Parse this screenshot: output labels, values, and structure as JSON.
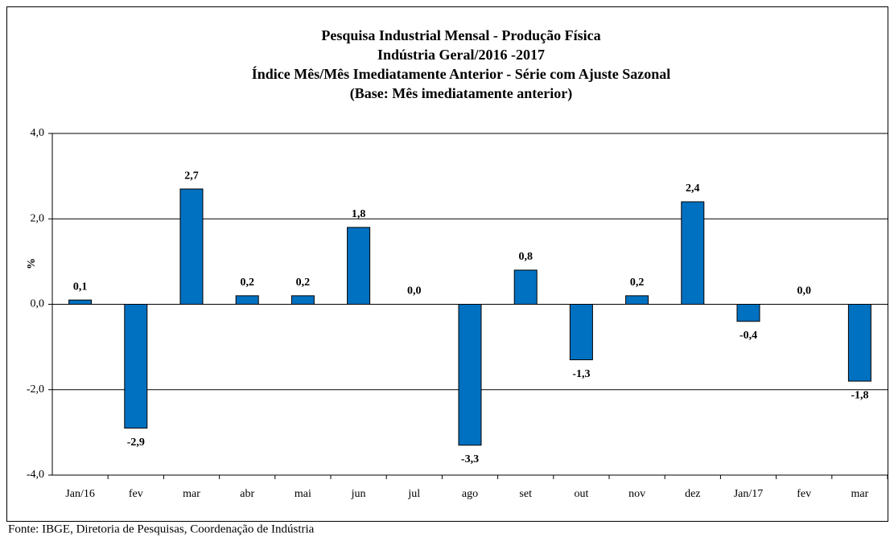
{
  "chart_data": {
    "type": "bar",
    "title": "Pesquisa Industrial Mensal - Produção Física",
    "subtitle": "Indústria Geral/2016 -2017",
    "subtitle2": "Índice Mês/Mês Imediatamente Anterior - Série com Ajuste Sazonal",
    "subtitle3": "(Base: Mês imediatamente anterior)",
    "y_label": "%",
    "categories": [
      "Jan/16",
      "fev",
      "mar",
      "abr",
      "mai",
      "jun",
      "jul",
      "ago",
      "set",
      "out",
      "nov",
      "dez",
      "Jan/17",
      "fev",
      "mar"
    ],
    "values": [
      0.1,
      -2.9,
      2.7,
      0.2,
      0.2,
      1.8,
      0.0,
      -3.3,
      0.8,
      -1.3,
      0.2,
      2.4,
      -0.4,
      0.0,
      -1.8
    ],
    "value_labels": [
      "0,1",
      "-2,9",
      "2,7",
      "0,2",
      "0,2",
      "1,8",
      "0,0",
      "-3,3",
      "0,8",
      "-1,3",
      "0,2",
      "2,4",
      "-0,4",
      "0,0",
      "-1,8"
    ],
    "color": "#0070c0",
    "ylim": [
      -4,
      4
    ],
    "yticks": [
      {
        "value": -4,
        "label": "-4,0"
      },
      {
        "value": -2,
        "label": "-2,0"
      },
      {
        "value": 0,
        "label": "0,0"
      },
      {
        "value": 2,
        "label": "2,0"
      },
      {
        "value": 4,
        "label": "4,0"
      }
    ],
    "grid": true,
    "source": "Fonte: IBGE, Diretoria de Pesquisas, Coordenação de Indústria"
  }
}
